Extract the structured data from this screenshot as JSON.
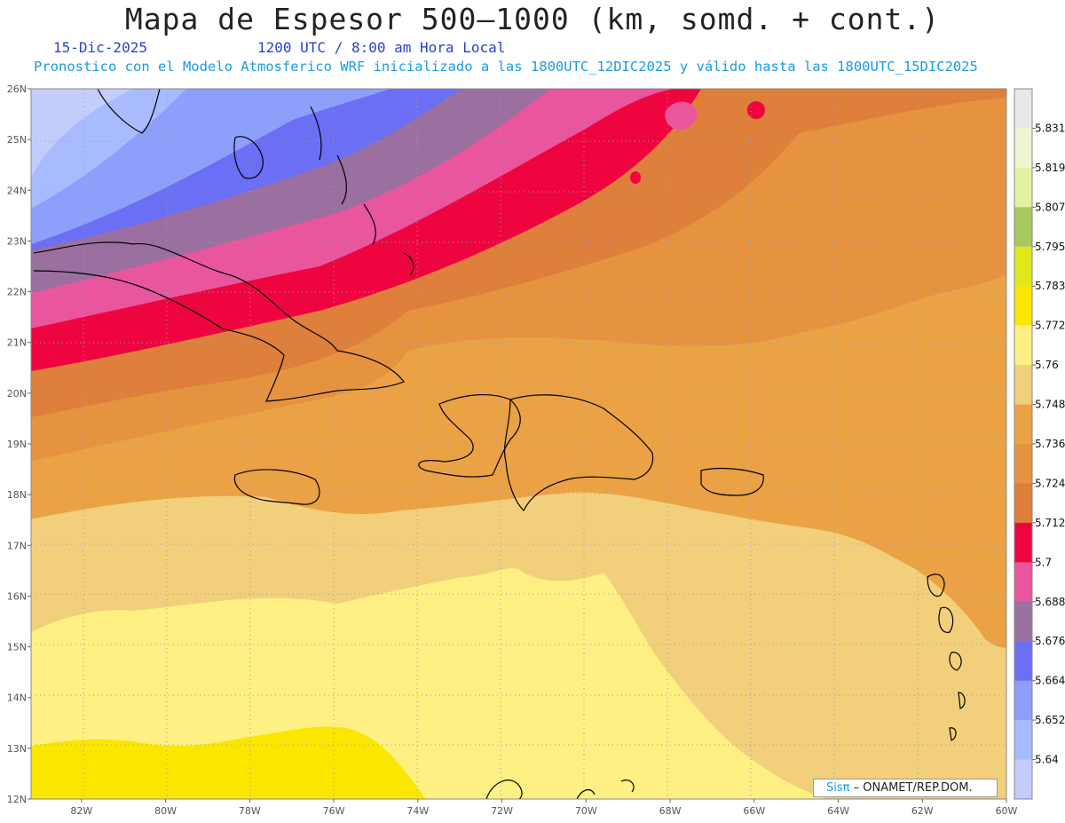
{
  "header": {
    "title": "Mapa de Espesor 500—1000 (km, somd. + cont.)",
    "date": "15-Dic-2025",
    "time": "1200 UTC / 8:00 am Hora Local",
    "description": "Pronostico con el Modelo Atmosferico WRF inicializado a las 1800UTC_12DIC2025 y válido hasta las  1800UTC_15DIC2025"
  },
  "map": {
    "lon_labels": [
      "82W",
      "80W",
      "78W",
      "76W",
      "74W",
      "72W",
      "70W",
      "68W",
      "66W",
      "64W",
      "62W",
      "60W"
    ],
    "lat_labels": [
      "26N",
      "25N",
      "24N",
      "23N",
      "22N",
      "21N",
      "20N",
      "19N",
      "18N",
      "17N",
      "16N",
      "15N",
      "14N",
      "13N",
      "12N"
    ],
    "lon_range": [
      -83.2,
      -60
    ],
    "lat_range": [
      12,
      26
    ],
    "grid": "dotted",
    "field": "thickness 500-1000 hPa"
  },
  "colorbar": {
    "levels": [
      "5.831",
      "5.819",
      "5.807",
      "5.795",
      "5.783",
      "5.772",
      "5.76",
      "5.748",
      "5.736",
      "5.724",
      "5.712",
      "5.7",
      "5.688",
      "5.676",
      "5.664",
      "5.652",
      "5.64"
    ],
    "colors": [
      "#e8e8e8",
      "#eef5cf",
      "#e2f3a0",
      "#a8c860",
      "#dfe81c",
      "#fbe600",
      "#fff083",
      "#f2cf7b",
      "#eba245",
      "#e69340",
      "#de7f3b",
      "#ee0540",
      "#e9569e",
      "#9b6fa0",
      "#6a6ff3",
      "#8d9ffb",
      "#a8bbff",
      "#c3ccfb"
    ]
  },
  "credit": {
    "brand": "Sisπ",
    "org": "– ONAMET/REP.DOM."
  }
}
